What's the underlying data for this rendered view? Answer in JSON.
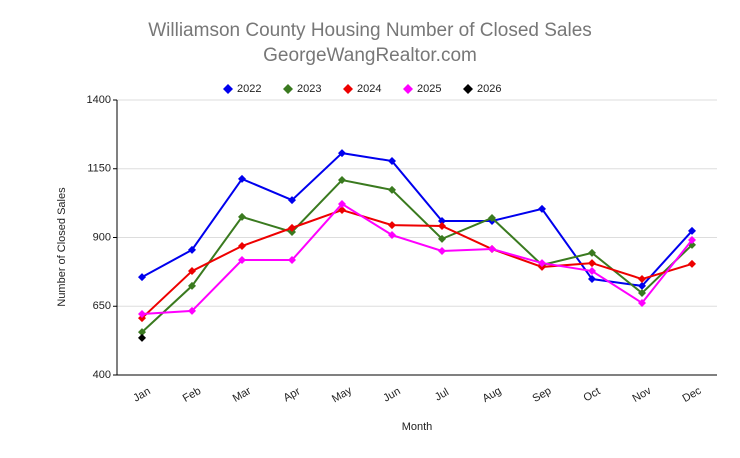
{
  "chart_data": {
    "type": "line",
    "title": "Williamson County Housing Number of Closed Sales",
    "subtitle": "GeorgeWangRealtor.com",
    "x_label": "Month",
    "y_label": "Number of Closed Sales",
    "categories": [
      "Jan",
      "Feb",
      "Mar",
      "Apr",
      "May",
      "Jun",
      "Jul",
      "Aug",
      "Sep",
      "Oct",
      "Nov",
      "Dec"
    ],
    "series": [
      {
        "name": "2022",
        "color": "#0000ee",
        "values": [
          756,
          855,
          1113,
          1036,
          1207,
          1178,
          960,
          960,
          1004,
          749,
          724,
          924
        ]
      },
      {
        "name": "2023",
        "color": "#3a7a1f",
        "values": [
          556,
          724,
          975,
          920,
          1109,
          1073,
          895,
          971,
          800,
          844,
          698,
          873
        ]
      },
      {
        "name": "2024",
        "color": "#ee0000",
        "values": [
          607,
          778,
          869,
          935,
          1000,
          945,
          942,
          858,
          793,
          807,
          749,
          804
        ]
      },
      {
        "name": "2025",
        "color": "#ff00ff",
        "values": [
          622,
          633,
          818,
          818,
          1022,
          909,
          851,
          858,
          807,
          778,
          662,
          891
        ]
      },
      {
        "name": "2026",
        "color": "#000000",
        "values": [
          535,
          null,
          null,
          null,
          null,
          null,
          null,
          null,
          null,
          null,
          null,
          null
        ]
      }
    ],
    "ylim": [
      400,
      1400
    ],
    "yticks": [
      400,
      650,
      900,
      1150,
      1400
    ],
    "grid": true
  }
}
